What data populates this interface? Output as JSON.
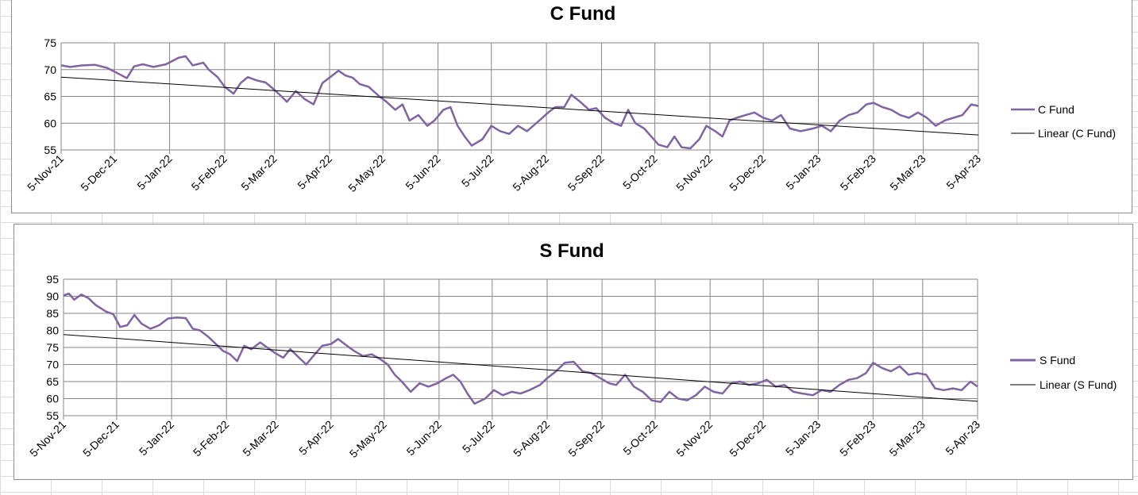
{
  "chart_data": [
    {
      "type": "line",
      "title": "C Fund",
      "xlabel": "",
      "ylabel": "",
      "ylim": [
        55,
        75
      ],
      "y_ticks": [
        55,
        60,
        65,
        70,
        75
      ],
      "x_ticks": [
        "5-Nov-21",
        "5-Dec-21",
        "5-Jan-22",
        "5-Feb-22",
        "5-Mar-22",
        "5-Apr-22",
        "5-May-22",
        "5-Jun-22",
        "5-Jul-22",
        "5-Aug-22",
        "5-Sep-22",
        "5-Oct-22",
        "5-Nov-22",
        "5-Dec-22",
        "5-Jan-23",
        "5-Feb-23",
        "5-Mar-23",
        "5-Apr-23"
      ],
      "grid": true,
      "legend_position": "right",
      "series": [
        {
          "name": "C Fund",
          "color": "#8064a2",
          "points": [
            [
              "5-Nov-21",
              70.8
            ],
            [
              "10-Nov-21",
              70.5
            ],
            [
              "17-Nov-21",
              70.8
            ],
            [
              "24-Nov-21",
              70.9
            ],
            [
              "1-Dec-21",
              70.3
            ],
            [
              "8-Dec-21",
              69.1
            ],
            [
              "12-Dec-21",
              68.4
            ],
            [
              "16-Dec-21",
              70.6
            ],
            [
              "21-Dec-21",
              71.0
            ],
            [
              "27-Dec-21",
              70.5
            ],
            [
              "3-Jan-22",
              71.0
            ],
            [
              "10-Jan-22",
              72.2
            ],
            [
              "14-Jan-22",
              72.5
            ],
            [
              "18-Jan-22",
              70.8
            ],
            [
              "24-Jan-22",
              71.3
            ],
            [
              "27-Jan-22",
              70.0
            ],
            [
              "1-Feb-22",
              68.6
            ],
            [
              "5-Feb-22",
              66.8
            ],
            [
              "10-Feb-22",
              65.5
            ],
            [
              "14-Feb-22",
              67.5
            ],
            [
              "18-Feb-22",
              68.6
            ],
            [
              "23-Feb-22",
              68.0
            ],
            [
              "28-Feb-22",
              67.6
            ],
            [
              "4-Mar-22",
              66.5
            ],
            [
              "8-Mar-22",
              65.3
            ],
            [
              "12-Mar-22",
              64.0
            ],
            [
              "17-Mar-22",
              66.0
            ],
            [
              "22-Mar-22",
              64.5
            ],
            [
              "27-Mar-22",
              63.5
            ],
            [
              "1-Apr-22",
              67.5
            ],
            [
              "5-Apr-22",
              68.5
            ],
            [
              "10-Apr-22",
              69.8
            ],
            [
              "14-Apr-22",
              68.9
            ],
            [
              "18-Apr-22",
              68.5
            ],
            [
              "22-Apr-22",
              67.3
            ],
            [
              "27-Apr-22",
              66.8
            ],
            [
              "3-May-22",
              65.0
            ],
            [
              "7-May-22",
              64.0
            ],
            [
              "12-May-22",
              62.5
            ],
            [
              "16-May-22",
              63.5
            ],
            [
              "20-May-22",
              60.5
            ],
            [
              "25-May-22",
              61.5
            ],
            [
              "30-May-22",
              59.5
            ],
            [
              "3-Jun-22",
              60.5
            ],
            [
              "8-Jun-22",
              62.5
            ],
            [
              "12-Jun-22",
              63.0
            ],
            [
              "16-Jun-22",
              59.5
            ],
            [
              "20-Jun-22",
              57.5
            ],
            [
              "24-Jun-22",
              55.8
            ],
            [
              "30-Jun-22",
              57.0
            ],
            [
              "5-Jul-22",
              59.5
            ],
            [
              "10-Jul-22",
              58.5
            ],
            [
              "15-Jul-22",
              58.0
            ],
            [
              "20-Jul-22",
              59.5
            ],
            [
              "25-Jul-22",
              58.5
            ],
            [
              "1-Aug-22",
              60.5
            ],
            [
              "6-Aug-22",
              62.0
            ],
            [
              "10-Aug-22",
              63.0
            ],
            [
              "15-Aug-22",
              63.0
            ],
            [
              "19-Aug-22",
              65.3
            ],
            [
              "24-Aug-22",
              64.0
            ],
            [
              "29-Aug-22",
              62.5
            ],
            [
              "2-Sep-22",
              62.8
            ],
            [
              "7-Sep-22",
              61.0
            ],
            [
              "12-Sep-22",
              60.0
            ],
            [
              "16-Sep-22",
              59.5
            ],
            [
              "20-Sep-22",
              62.5
            ],
            [
              "24-Sep-22",
              60.0
            ],
            [
              "29-Sep-22",
              59.0
            ],
            [
              "3-Oct-22",
              57.5
            ],
            [
              "7-Oct-22",
              56.0
            ],
            [
              "12-Oct-22",
              55.5
            ],
            [
              "16-Oct-22",
              57.5
            ],
            [
              "20-Oct-22",
              55.5
            ],
            [
              "25-Oct-22",
              55.3
            ],
            [
              "30-Oct-22",
              57.0
            ],
            [
              "3-Nov-22",
              59.5
            ],
            [
              "8-Nov-22",
              58.5
            ],
            [
              "12-Nov-22",
              57.5
            ],
            [
              "16-Nov-22",
              60.5
            ],
            [
              "20-Nov-22",
              61.0
            ],
            [
              "25-Nov-22",
              61.5
            ],
            [
              "30-Nov-22",
              62.0
            ],
            [
              "5-Dec-22",
              61.0
            ],
            [
              "10-Dec-22",
              60.5
            ],
            [
              "15-Dec-22",
              61.5
            ],
            [
              "20-Dec-22",
              59.0
            ],
            [
              "26-Dec-22",
              58.5
            ],
            [
              "2-Jan-23",
              59.0
            ],
            [
              "7-Jan-23",
              59.5
            ],
            [
              "12-Jan-23",
              58.5
            ],
            [
              "17-Jan-23",
              60.5
            ],
            [
              "22-Jan-23",
              61.5
            ],
            [
              "27-Jan-23",
              62.0
            ],
            [
              "1-Feb-23",
              63.5
            ],
            [
              "5-Feb-23",
              63.8
            ],
            [
              "10-Feb-23",
              63.0
            ],
            [
              "15-Feb-23",
              62.5
            ],
            [
              "20-Feb-23",
              61.5
            ],
            [
              "25-Feb-23",
              61.0
            ],
            [
              "2-Mar-23",
              62.0
            ],
            [
              "7-Mar-23",
              61.0
            ],
            [
              "12-Mar-23",
              59.5
            ],
            [
              "17-Mar-23",
              60.5
            ],
            [
              "22-Mar-23",
              61.0
            ],
            [
              "27-Mar-23",
              61.5
            ],
            [
              "1-Apr-23",
              63.5
            ],
            [
              "5-Apr-23",
              63.2
            ]
          ]
        },
        {
          "name": "Linear (C Fund)",
          "color": "#000000",
          "points": [
            [
              "5-Nov-21",
              68.6
            ],
            [
              "5-Apr-23",
              57.8
            ]
          ]
        }
      ]
    },
    {
      "type": "line",
      "title": "S Fund",
      "xlabel": "",
      "ylabel": "",
      "ylim": [
        55,
        95
      ],
      "y_ticks": [
        55,
        60,
        65,
        70,
        75,
        80,
        85,
        90,
        95
      ],
      "x_ticks": [
        "5-Nov-21",
        "5-Dec-21",
        "5-Jan-22",
        "5-Feb-22",
        "5-Mar-22",
        "5-Apr-22",
        "5-May-22",
        "5-Jun-22",
        "5-Jul-22",
        "5-Aug-22",
        "5-Sep-22",
        "5-Oct-22",
        "5-Nov-22",
        "5-Dec-22",
        "5-Jan-23",
        "5-Feb-23",
        "5-Mar-23",
        "5-Apr-23"
      ],
      "grid": true,
      "legend_position": "right",
      "series": [
        {
          "name": "S Fund",
          "color": "#8064a2",
          "points": [
            [
              "5-Nov-21",
              90.2
            ],
            [
              "8-Nov-21",
              90.8
            ],
            [
              "11-Nov-21",
              89.0
            ],
            [
              "15-Nov-21",
              90.5
            ],
            [
              "19-Nov-21",
              89.5
            ],
            [
              "23-Nov-21",
              87.5
            ],
            [
              "29-Nov-21",
              85.5
            ],
            [
              "3-Dec-21",
              84.8
            ],
            [
              "7-Dec-21",
              81.0
            ],
            [
              "11-Dec-21",
              81.5
            ],
            [
              "15-Dec-21",
              84.5
            ],
            [
              "19-Dec-21",
              82.0
            ],
            [
              "24-Dec-21",
              80.5
            ],
            [
              "29-Dec-21",
              81.5
            ],
            [
              "3-Jan-22",
              83.5
            ],
            [
              "8-Jan-22",
              83.8
            ],
            [
              "13-Jan-22",
              83.6
            ],
            [
              "17-Jan-22",
              80.5
            ],
            [
              "21-Jan-22",
              80.0
            ],
            [
              "26-Jan-22",
              78.0
            ],
            [
              "30-Jan-22",
              76.0
            ],
            [
              "3-Feb-22",
              74.0
            ],
            [
              "7-Feb-22",
              73.0
            ],
            [
              "11-Feb-22",
              71.0
            ],
            [
              "15-Feb-22",
              75.5
            ],
            [
              "19-Feb-22",
              74.5
            ],
            [
              "24-Feb-22",
              76.5
            ],
            [
              "28-Feb-22",
              75.0
            ],
            [
              "4-Mar-22",
              73.5
            ],
            [
              "9-Mar-22",
              72.0
            ],
            [
              "13-Mar-22",
              74.5
            ],
            [
              "17-Mar-22",
              72.5
            ],
            [
              "22-Mar-22",
              70.0
            ],
            [
              "26-Mar-22",
              72.5
            ],
            [
              "31-Mar-22",
              75.5
            ],
            [
              "5-Apr-22",
              76.0
            ],
            [
              "9-Apr-22",
              77.5
            ],
            [
              "14-Apr-22",
              75.5
            ],
            [
              "18-Apr-22",
              74.0
            ],
            [
              "23-Apr-22",
              72.5
            ],
            [
              "28-Apr-22",
              73.0
            ],
            [
              "3-May-22",
              71.5
            ],
            [
              "7-May-22",
              70.0
            ],
            [
              "11-May-22",
              67.0
            ],
            [
              "15-May-22",
              65.0
            ],
            [
              "20-May-22",
              62.0
            ],
            [
              "25-May-22",
              64.5
            ],
            [
              "30-May-22",
              63.5
            ],
            [
              "4-Jun-22",
              64.5
            ],
            [
              "9-Jun-22",
              66.0
            ],
            [
              "13-Jun-22",
              67.0
            ],
            [
              "17-Jun-22",
              65.0
            ],
            [
              "21-Jun-22",
              61.5
            ],
            [
              "25-Jun-22",
              58.5
            ],
            [
              "1-Jul-22",
              60.0
            ],
            [
              "6-Jul-22",
              62.5
            ],
            [
              "11-Jul-22",
              61.0
            ],
            [
              "16-Jul-22",
              62.0
            ],
            [
              "21-Jul-22",
              61.5
            ],
            [
              "26-Jul-22",
              62.5
            ],
            [
              "1-Aug-22",
              64.0
            ],
            [
              "5-Aug-22",
              66.0
            ],
            [
              "10-Aug-22",
              68.0
            ],
            [
              "15-Aug-22",
              70.5
            ],
            [
              "20-Aug-22",
              70.8
            ],
            [
              "25-Aug-22",
              68.0
            ],
            [
              "30-Aug-22",
              67.5
            ],
            [
              "4-Sep-22",
              66.0
            ],
            [
              "9-Sep-22",
              64.5
            ],
            [
              "13-Sep-22",
              64.0
            ],
            [
              "18-Sep-22",
              67.0
            ],
            [
              "23-Sep-22",
              63.5
            ],
            [
              "28-Sep-22",
              62.0
            ],
            [
              "3-Oct-22",
              59.5
            ],
            [
              "8-Oct-22",
              59.0
            ],
            [
              "13-Oct-22",
              62.0
            ],
            [
              "18-Oct-22",
              60.0
            ],
            [
              "23-Oct-22",
              59.5
            ],
            [
              "28-Oct-22",
              61.0
            ],
            [
              "2-Nov-22",
              63.5
            ],
            [
              "7-Nov-22",
              62.0
            ],
            [
              "12-Nov-22",
              61.5
            ],
            [
              "17-Nov-22",
              64.5
            ],
            [
              "22-Nov-22",
              65.0
            ],
            [
              "27-Nov-22",
              64.0
            ],
            [
              "2-Dec-22",
              64.5
            ],
            [
              "7-Dec-22",
              65.5
            ],
            [
              "12-Dec-22",
              63.5
            ],
            [
              "17-Dec-22",
              64.0
            ],
            [
              "22-Dec-22",
              62.0
            ],
            [
              "27-Dec-22",
              61.5
            ],
            [
              "2-Jan-23",
              61.0
            ],
            [
              "7-Jan-23",
              62.5
            ],
            [
              "12-Jan-23",
              62.0
            ],
            [
              "17-Jan-23",
              64.0
            ],
            [
              "22-Jan-23",
              65.5
            ],
            [
              "27-Jan-23",
              66.0
            ],
            [
              "1-Feb-23",
              67.5
            ],
            [
              "5-Feb-23",
              70.5
            ],
            [
              "10-Feb-23",
              69.0
            ],
            [
              "15-Feb-23",
              68.0
            ],
            [
              "20-Feb-23",
              69.5
            ],
            [
              "25-Feb-23",
              67.0
            ],
            [
              "2-Mar-23",
              67.5
            ],
            [
              "7-Mar-23",
              67.0
            ],
            [
              "12-Mar-23",
              63.0
            ],
            [
              "17-Mar-23",
              62.5
            ],
            [
              "22-Mar-23",
              63.0
            ],
            [
              "27-Mar-23",
              62.5
            ],
            [
              "1-Apr-23",
              65.0
            ],
            [
              "5-Apr-23",
              63.5
            ]
          ]
        },
        {
          "name": "Linear (S Fund)",
          "color": "#000000",
          "points": [
            [
              "5-Nov-21",
              78.8
            ],
            [
              "5-Apr-23",
              59.2
            ]
          ]
        }
      ]
    }
  ]
}
